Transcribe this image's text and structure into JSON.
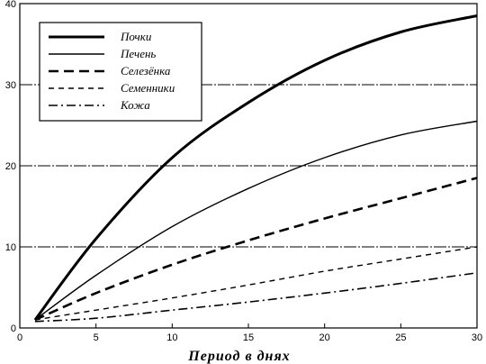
{
  "chart_data": {
    "type": "line",
    "title": "",
    "xlabel": "Период в днях",
    "ylabel": "",
    "xlim": [
      0,
      30
    ],
    "ylim": [
      0,
      40
    ],
    "xticks": [
      0,
      5,
      10,
      15,
      20,
      25,
      30
    ],
    "yticks": [
      0,
      10,
      20,
      30,
      40
    ],
    "grid": "horizontal",
    "legend_position": "top-left",
    "series": [
      {
        "name": "Почки",
        "style": "solid-thick",
        "x": [
          1,
          5,
          10,
          15,
          20,
          25,
          30
        ],
        "y": [
          1,
          11,
          21,
          27.8,
          33,
          36.5,
          38.5
        ]
      },
      {
        "name": "Печень",
        "style": "solid-thin",
        "x": [
          1,
          5,
          10,
          15,
          20,
          25,
          30
        ],
        "y": [
          1,
          6.5,
          12.5,
          17.2,
          21,
          23.8,
          25.5
        ]
      },
      {
        "name": "Селезёнка",
        "style": "dashed-thick",
        "x": [
          1,
          5,
          10,
          15,
          20,
          25,
          30
        ],
        "y": [
          1,
          4.3,
          7.8,
          10.8,
          13.5,
          16,
          18.5
        ]
      },
      {
        "name": "Семенники",
        "style": "dashed-thin",
        "x": [
          1,
          5,
          10,
          15,
          20,
          25,
          30
        ],
        "y": [
          1,
          2.2,
          3.7,
          5.3,
          7,
          8.5,
          10
        ]
      },
      {
        "name": "Кожа",
        "style": "dashdot",
        "x": [
          1,
          5,
          10,
          15,
          20,
          25,
          30
        ],
        "y": [
          0.8,
          1.2,
          2.2,
          3.2,
          4.3,
          5.5,
          6.8
        ]
      }
    ]
  }
}
